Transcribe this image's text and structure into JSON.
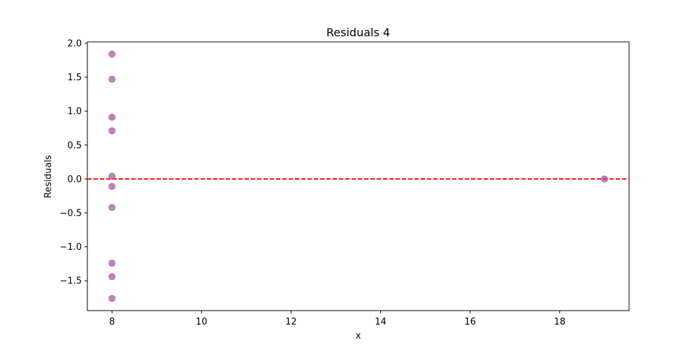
{
  "chart_data": {
    "type": "scatter",
    "title": "Residuals 4",
    "xlabel": "x",
    "ylabel": "Residuals",
    "xlim": [
      7.45,
      19.55
    ],
    "ylim": [
      -1.94,
      2.02
    ],
    "xticks": [
      8,
      10,
      12,
      14,
      16,
      18
    ],
    "yticks": [
      -1.5,
      -1.0,
      -0.5,
      0.0,
      0.5,
      1.0,
      1.5,
      2.0
    ],
    "xtick_labels": [
      "8",
      "10",
      "12",
      "14",
      "16",
      "18"
    ],
    "ytick_labels": [
      "−1.5",
      "−1.0",
      "−0.5",
      "0.0",
      "0.5",
      "1.0",
      "1.5",
      "2.0"
    ],
    "grid": false,
    "point_color": "#a64ca6",
    "reference_line": {
      "y": 0,
      "color": "#ff0000",
      "style": "dashed"
    },
    "points": [
      {
        "x": 8,
        "y": 1.84
      },
      {
        "x": 8,
        "y": 1.47
      },
      {
        "x": 8,
        "y": 0.91
      },
      {
        "x": 8,
        "y": 0.71
      },
      {
        "x": 8,
        "y": 0.04
      },
      {
        "x": 8,
        "y": -0.11
      },
      {
        "x": 8,
        "y": -0.42
      },
      {
        "x": 8,
        "y": -1.24
      },
      {
        "x": 8,
        "y": -1.44
      },
      {
        "x": 8,
        "y": -1.76
      },
      {
        "x": 19,
        "y": 0.0
      }
    ]
  }
}
